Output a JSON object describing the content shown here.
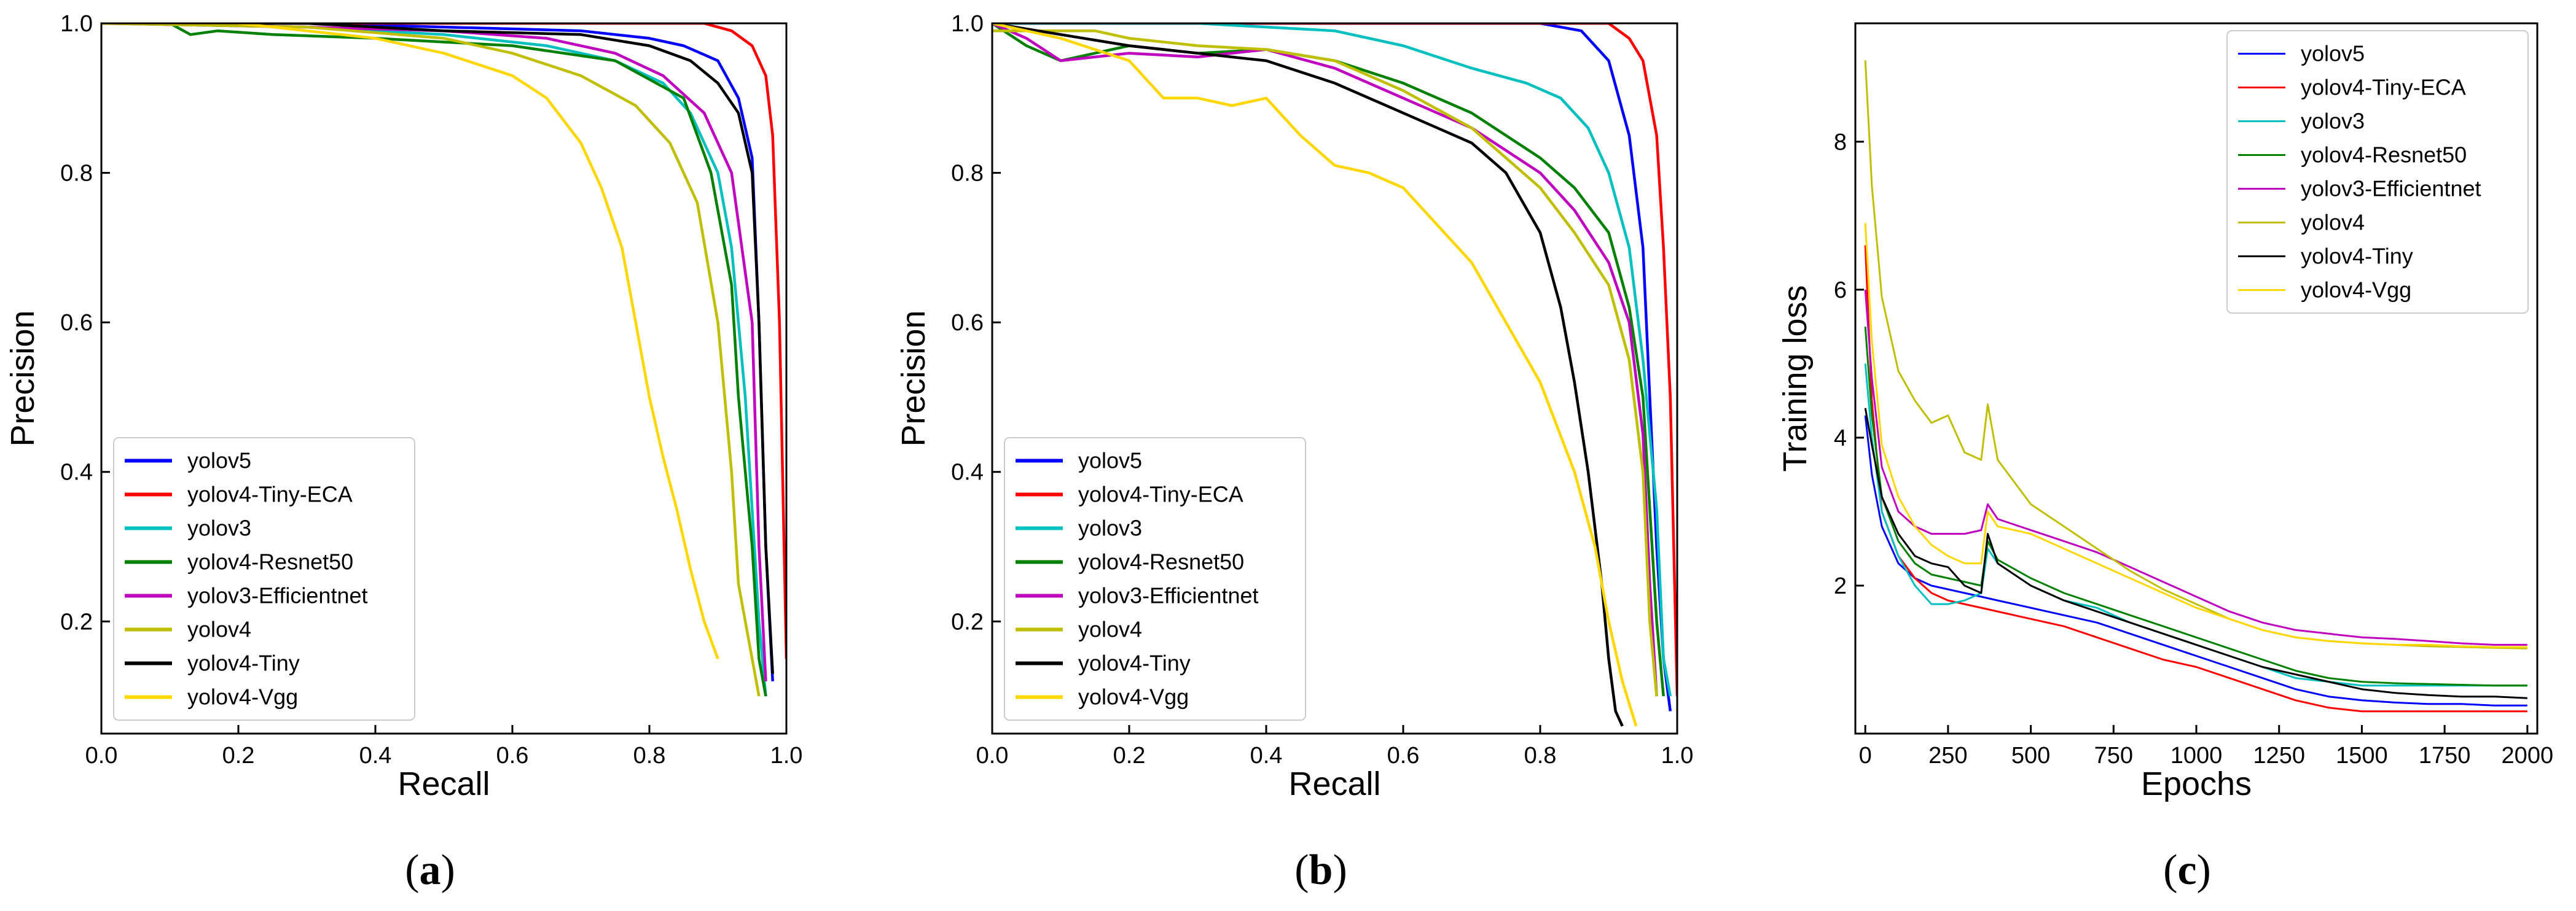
{
  "colors": {
    "yolov5": "#0000ff",
    "yolov4-Tiny-ECA": "#ff0000",
    "yolov3": "#00bfbf",
    "yolov4-Resnet50": "#008000",
    "yolov3-Efficientnet": "#bf00bf",
    "yolov4": "#bfbf00",
    "yolov4-Tiny": "#000000",
    "yolov4-Vgg": "#ffd700"
  },
  "chart_data": [
    {
      "type": "line",
      "panel_label": {
        "open": "(",
        "letter": "a",
        "close": ")"
      },
      "xlabel": "Recall",
      "ylabel": "Precision",
      "xlim": [
        0.0,
        1.0
      ],
      "ylim": [
        0.05,
        1.0
      ],
      "xticks": [
        "0.0",
        "0.2",
        "0.4",
        "0.6",
        "0.8",
        "1.0"
      ],
      "yticks": [
        "0.2",
        "0.4",
        "0.6",
        "0.8",
        "1.0"
      ],
      "legend_position": "lower-left",
      "series": [
        {
          "name": "yolov5",
          "x": [
            0,
            0.3,
            0.5,
            0.7,
            0.8,
            0.85,
            0.9,
            0.93,
            0.95,
            0.96,
            0.97,
            0.98
          ],
          "y": [
            1,
            1,
            0.995,
            0.99,
            0.98,
            0.97,
            0.95,
            0.9,
            0.82,
            0.6,
            0.3,
            0.12
          ]
        },
        {
          "name": "yolov4-Tiny-ECA",
          "x": [
            0,
            0.5,
            0.88,
            0.92,
            0.95,
            0.97,
            0.98,
            0.99,
            1.0
          ],
          "y": [
            1,
            1,
            1,
            0.99,
            0.97,
            0.93,
            0.85,
            0.6,
            0.15
          ]
        },
        {
          "name": "yolov3",
          "x": [
            0,
            0.3,
            0.5,
            0.65,
            0.75,
            0.82,
            0.86,
            0.9,
            0.92,
            0.94,
            0.96,
            0.97
          ],
          "y": [
            1,
            0.995,
            0.985,
            0.97,
            0.95,
            0.92,
            0.88,
            0.8,
            0.7,
            0.5,
            0.2,
            0.1
          ]
        },
        {
          "name": "yolov4-Resnet50",
          "x": [
            0,
            0.1,
            0.13,
            0.17,
            0.25,
            0.4,
            0.6,
            0.75,
            0.85,
            0.89,
            0.92,
            0.93,
            0.95,
            0.96,
            0.97
          ],
          "y": [
            1,
            1,
            0.985,
            0.99,
            0.985,
            0.98,
            0.97,
            0.95,
            0.9,
            0.8,
            0.65,
            0.5,
            0.3,
            0.15,
            0.1
          ]
        },
        {
          "name": "yolov3-Efficientnet",
          "x": [
            0,
            0.3,
            0.5,
            0.65,
            0.75,
            0.82,
            0.88,
            0.92,
            0.95,
            0.96,
            0.97
          ],
          "y": [
            1,
            0.995,
            0.99,
            0.98,
            0.96,
            0.93,
            0.88,
            0.8,
            0.6,
            0.3,
            0.12
          ]
        },
        {
          "name": "yolov4",
          "x": [
            0,
            0.3,
            0.5,
            0.6,
            0.7,
            0.78,
            0.83,
            0.87,
            0.9,
            0.92,
            0.93,
            0.95,
            0.96
          ],
          "y": [
            1,
            0.995,
            0.98,
            0.96,
            0.93,
            0.89,
            0.84,
            0.76,
            0.6,
            0.4,
            0.25,
            0.15,
            0.1
          ]
        },
        {
          "name": "yolov4-Tiny",
          "x": [
            0,
            0.3,
            0.5,
            0.7,
            0.8,
            0.86,
            0.9,
            0.93,
            0.95,
            0.96,
            0.97,
            0.98
          ],
          "y": [
            1,
            1,
            0.99,
            0.985,
            0.97,
            0.95,
            0.92,
            0.88,
            0.8,
            0.6,
            0.3,
            0.13
          ]
        },
        {
          "name": "yolov4-Vgg",
          "x": [
            0,
            0.2,
            0.4,
            0.5,
            0.6,
            0.65,
            0.7,
            0.73,
            0.76,
            0.78,
            0.8,
            0.82,
            0.84,
            0.86,
            0.88,
            0.9
          ],
          "y": [
            1,
            1,
            0.98,
            0.96,
            0.93,
            0.9,
            0.84,
            0.78,
            0.7,
            0.6,
            0.5,
            0.42,
            0.35,
            0.27,
            0.2,
            0.15
          ]
        }
      ]
    },
    {
      "type": "line",
      "panel_label": {
        "open": "(",
        "letter": "b",
        "close": ")"
      },
      "xlabel": "Recall",
      "ylabel": "Precision",
      "xlim": [
        0.0,
        1.0
      ],
      "ylim": [
        0.05,
        1.0
      ],
      "xticks": [
        "0.0",
        "0.2",
        "0.4",
        "0.6",
        "0.8",
        "1.0"
      ],
      "yticks": [
        "0.2",
        "0.4",
        "0.6",
        "0.8",
        "1.0"
      ],
      "legend_position": "lower-left",
      "series": [
        {
          "name": "yolov5",
          "x": [
            0,
            0.5,
            0.8,
            0.86,
            0.9,
            0.93,
            0.95,
            0.96,
            0.97,
            0.98,
            0.99
          ],
          "y": [
            1,
            1,
            1,
            0.99,
            0.95,
            0.85,
            0.7,
            0.5,
            0.3,
            0.15,
            0.08
          ]
        },
        {
          "name": "yolov4-Tiny-ECA",
          "x": [
            0,
            0.5,
            0.9,
            0.93,
            0.95,
            0.97,
            0.98,
            0.99,
            1.0
          ],
          "y": [
            1,
            1,
            1,
            0.98,
            0.95,
            0.85,
            0.7,
            0.5,
            0.1
          ]
        },
        {
          "name": "yolov3",
          "x": [
            0,
            0.3,
            0.5,
            0.6,
            0.7,
            0.78,
            0.83,
            0.87,
            0.9,
            0.93,
            0.95,
            0.97,
            0.98,
            0.99
          ],
          "y": [
            1,
            1,
            0.99,
            0.97,
            0.94,
            0.92,
            0.9,
            0.86,
            0.8,
            0.7,
            0.55,
            0.35,
            0.15,
            0.1
          ]
        },
        {
          "name": "yolov4-Resnet50",
          "x": [
            0,
            0.05,
            0.1,
            0.2,
            0.3,
            0.4,
            0.5,
            0.6,
            0.7,
            0.8,
            0.85,
            0.9,
            0.93,
            0.95,
            0.96,
            0.97,
            0.98
          ],
          "y": [
            1,
            0.97,
            0.95,
            0.97,
            0.96,
            0.965,
            0.95,
            0.92,
            0.88,
            0.82,
            0.78,
            0.72,
            0.62,
            0.5,
            0.35,
            0.2,
            0.1
          ]
        },
        {
          "name": "yolov3-Efficientnet",
          "x": [
            0,
            0.05,
            0.1,
            0.2,
            0.3,
            0.4,
            0.5,
            0.6,
            0.7,
            0.8,
            0.85,
            0.9,
            0.93,
            0.95,
            0.96,
            0.97
          ],
          "y": [
            1,
            0.98,
            0.95,
            0.96,
            0.955,
            0.965,
            0.94,
            0.9,
            0.86,
            0.8,
            0.75,
            0.68,
            0.6,
            0.45,
            0.25,
            0.1
          ]
        },
        {
          "name": "yolov4",
          "x": [
            0,
            0.15,
            0.2,
            0.3,
            0.4,
            0.5,
            0.6,
            0.7,
            0.75,
            0.8,
            0.85,
            0.9,
            0.93,
            0.95,
            0.96,
            0.97
          ],
          "y": [
            0.99,
            0.99,
            0.98,
            0.97,
            0.965,
            0.95,
            0.91,
            0.86,
            0.82,
            0.78,
            0.72,
            0.65,
            0.55,
            0.4,
            0.2,
            0.1
          ]
        },
        {
          "name": "yolov4-Tiny",
          "x": [
            0,
            0.2,
            0.3,
            0.4,
            0.5,
            0.6,
            0.65,
            0.7,
            0.75,
            0.8,
            0.83,
            0.85,
            0.87,
            0.89,
            0.9,
            0.91,
            0.92
          ],
          "y": [
            1,
            0.97,
            0.96,
            0.95,
            0.92,
            0.88,
            0.86,
            0.84,
            0.8,
            0.72,
            0.62,
            0.52,
            0.4,
            0.25,
            0.15,
            0.08,
            0.06
          ]
        },
        {
          "name": "yolov4-Vgg",
          "x": [
            0,
            0.1,
            0.2,
            0.25,
            0.3,
            0.35,
            0.4,
            0.45,
            0.5,
            0.55,
            0.6,
            0.65,
            0.7,
            0.75,
            0.8,
            0.85,
            0.88,
            0.9,
            0.92,
            0.94
          ],
          "y": [
            1,
            0.98,
            0.95,
            0.9,
            0.9,
            0.89,
            0.9,
            0.85,
            0.81,
            0.8,
            0.78,
            0.73,
            0.68,
            0.6,
            0.52,
            0.4,
            0.3,
            0.2,
            0.12,
            0.06
          ]
        }
      ]
    },
    {
      "type": "line",
      "panel_label": {
        "open": "(",
        "letter": "c",
        "close": ")"
      },
      "xlabel": "Epochs",
      "ylabel": "Training loss",
      "xlim": [
        -30,
        2030
      ],
      "ylim": [
        0.0,
        9.6
      ],
      "xticks": [
        "0",
        "250",
        "500",
        "750",
        "1000",
        "1250",
        "1500",
        "1750",
        "2000"
      ],
      "yticks": [
        "2",
        "4",
        "6",
        "8"
      ],
      "legend_position": "top-right",
      "series": [
        {
          "name": "yolov5",
          "x": [
            0,
            20,
            50,
            100,
            150,
            200,
            250,
            300,
            350,
            400,
            500,
            600,
            700,
            800,
            900,
            1000,
            1100,
            1200,
            1300,
            1400,
            1500,
            1600,
            1700,
            1800,
            1900,
            2000
          ],
          "y": [
            4.3,
            3.5,
            2.8,
            2.3,
            2.1,
            2.0,
            1.95,
            1.9,
            1.85,
            1.8,
            1.7,
            1.6,
            1.5,
            1.35,
            1.2,
            1.05,
            0.9,
            0.75,
            0.6,
            0.5,
            0.45,
            0.42,
            0.4,
            0.4,
            0.38,
            0.38
          ]
        },
        {
          "name": "yolov4-Tiny-ECA",
          "x": [
            0,
            20,
            50,
            100,
            150,
            200,
            250,
            300,
            350,
            400,
            500,
            600,
            700,
            800,
            900,
            1000,
            1100,
            1200,
            1300,
            1400,
            1500,
            1600,
            1700,
            1800,
            1900,
            2000
          ],
          "y": [
            6.6,
            4.5,
            3.0,
            2.4,
            2.1,
            1.9,
            1.8,
            1.75,
            1.7,
            1.65,
            1.55,
            1.45,
            1.3,
            1.15,
            1.0,
            0.9,
            0.75,
            0.6,
            0.45,
            0.35,
            0.3,
            0.3,
            0.3,
            0.3,
            0.3,
            0.3
          ]
        },
        {
          "name": "yolov3",
          "x": [
            0,
            20,
            50,
            100,
            150,
            200,
            250,
            300,
            350,
            370,
            400,
            500,
            600,
            700,
            800,
            900,
            1000,
            1100,
            1200,
            1300,
            1400,
            1500,
            1600,
            1700,
            1800,
            1900,
            2000
          ],
          "y": [
            5.0,
            4.0,
            3.0,
            2.4,
            2.0,
            1.75,
            1.75,
            1.8,
            1.9,
            2.5,
            2.3,
            2.0,
            1.8,
            1.7,
            1.5,
            1.35,
            1.2,
            1.05,
            0.9,
            0.75,
            0.7,
            0.65,
            0.65,
            0.65,
            0.65,
            0.65,
            0.65
          ]
        },
        {
          "name": "yolov4-Resnet50",
          "x": [
            0,
            20,
            50,
            100,
            150,
            200,
            250,
            300,
            350,
            370,
            400,
            500,
            600,
            700,
            800,
            900,
            1000,
            1100,
            1200,
            1300,
            1400,
            1500,
            1600,
            1700,
            1800,
            1900,
            2000
          ],
          "y": [
            5.5,
            4.3,
            3.2,
            2.6,
            2.3,
            2.15,
            2.1,
            2.05,
            2.0,
            2.6,
            2.35,
            2.1,
            1.9,
            1.75,
            1.6,
            1.45,
            1.3,
            1.15,
            1.0,
            0.85,
            0.75,
            0.7,
            0.68,
            0.67,
            0.66,
            0.65,
            0.65
          ]
        },
        {
          "name": "yolov3-Efficientnet",
          "x": [
            0,
            20,
            50,
            100,
            150,
            200,
            250,
            300,
            350,
            370,
            400,
            500,
            600,
            700,
            800,
            900,
            1000,
            1100,
            1200,
            1300,
            1400,
            1500,
            1600,
            1700,
            1800,
            1900,
            2000
          ],
          "y": [
            6.0,
            4.8,
            3.6,
            3.0,
            2.8,
            2.7,
            2.7,
            2.7,
            2.75,
            3.1,
            2.9,
            2.75,
            2.6,
            2.45,
            2.25,
            2.05,
            1.85,
            1.65,
            1.5,
            1.4,
            1.35,
            1.3,
            1.28,
            1.25,
            1.22,
            1.2,
            1.2
          ]
        },
        {
          "name": "yolov4",
          "x": [
            0,
            20,
            50,
            100,
            150,
            200,
            250,
            300,
            350,
            370,
            400,
            500,
            600,
            700,
            800,
            900,
            1000,
            1100,
            1200,
            1300,
            1400,
            1500,
            1600,
            1700,
            1800,
            1900,
            2000
          ],
          "y": [
            9.1,
            7.4,
            5.9,
            4.9,
            4.5,
            4.2,
            4.3,
            3.8,
            3.7,
            4.45,
            3.7,
            3.1,
            2.8,
            2.5,
            2.2,
            1.95,
            1.75,
            1.55,
            1.4,
            1.3,
            1.25,
            1.22,
            1.2,
            1.18,
            1.17,
            1.16,
            1.15
          ]
        },
        {
          "name": "yolov4-Tiny",
          "x": [
            0,
            20,
            50,
            100,
            150,
            200,
            250,
            300,
            350,
            370,
            400,
            500,
            600,
            700,
            800,
            900,
            1000,
            1100,
            1200,
            1300,
            1400,
            1500,
            1600,
            1700,
            1800,
            1900,
            2000
          ],
          "y": [
            4.4,
            3.9,
            3.2,
            2.7,
            2.4,
            2.3,
            2.25,
            2.0,
            1.9,
            2.7,
            2.3,
            2.0,
            1.8,
            1.65,
            1.5,
            1.35,
            1.2,
            1.05,
            0.9,
            0.8,
            0.7,
            0.6,
            0.55,
            0.52,
            0.5,
            0.5,
            0.48
          ]
        },
        {
          "name": "yolov4-Vgg",
          "x": [
            0,
            20,
            50,
            100,
            150,
            200,
            250,
            300,
            350,
            370,
            400,
            500,
            600,
            700,
            800,
            900,
            1000,
            1100,
            1200,
            1300,
            1400,
            1500,
            1600,
            1700,
            1800,
            1900,
            2000
          ],
          "y": [
            6.9,
            5.3,
            3.9,
            3.2,
            2.8,
            2.55,
            2.4,
            2.3,
            2.3,
            3.0,
            2.8,
            2.7,
            2.5,
            2.3,
            2.1,
            1.9,
            1.7,
            1.55,
            1.4,
            1.3,
            1.25,
            1.22,
            1.2,
            1.2,
            1.18,
            1.17,
            1.17
          ]
        }
      ]
    }
  ]
}
